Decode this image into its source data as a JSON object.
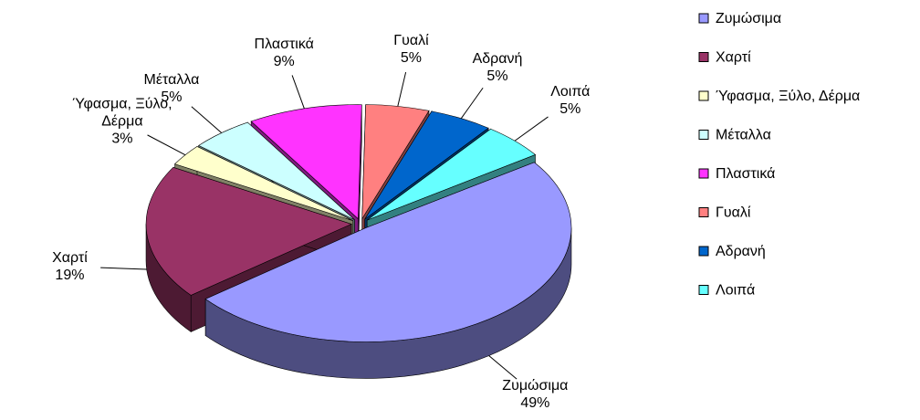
{
  "chart_data": {
    "type": "pie",
    "categories": [
      "Ζυμώσιμα",
      "Χαρτί",
      "Ύφασμα, Ξύλο, Δέρμα",
      "Μέταλλα",
      "Πλαστικά",
      "Γυαλί",
      "Αδρανή",
      "Λοιπά"
    ],
    "values": [
      49,
      19,
      3,
      5,
      9,
      5,
      5,
      5
    ],
    "value_labels": [
      "49%",
      "19%",
      "3%",
      "5%",
      "9%",
      "5%",
      "5%",
      "5%"
    ],
    "colors": [
      "#9999ff",
      "#993366",
      "#ffffcc",
      "#ccffff",
      "#ff33ff",
      "#ff8080",
      "#0066cc",
      "#66ffff"
    ],
    "legend": "right"
  }
}
